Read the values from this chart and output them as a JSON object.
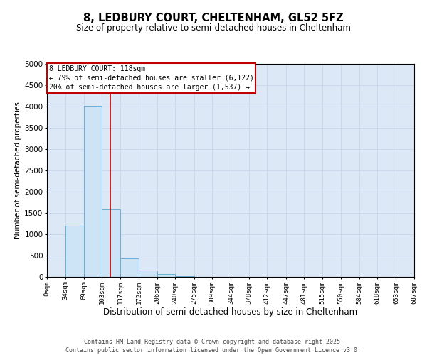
{
  "title_line1": "8, LEDBURY COURT, CHELTENHAM, GL52 5FZ",
  "title_line2": "Size of property relative to semi-detached houses in Cheltenham",
  "xlabel": "Distribution of semi-detached houses by size in Cheltenham",
  "ylabel": "Number of semi-detached properties",
  "bar_color": "#cce4f5",
  "bar_edge_color": "#6aaed6",
  "vline_color": "#c00000",
  "vline_x": 118,
  "annotation_text": "8 LEDBURY COURT: 118sqm\n← 79% of semi-detached houses are smaller (6,122)\n20% of semi-detached houses are larger (1,537) →",
  "annotation_box_color": "#c00000",
  "footer_line1": "Contains HM Land Registry data © Crown copyright and database right 2025.",
  "footer_line2": "Contains public sector information licensed under the Open Government Licence v3.0.",
  "ylim": [
    0,
    5000
  ],
  "yticks": [
    0,
    500,
    1000,
    1500,
    2000,
    2500,
    3000,
    3500,
    4000,
    4500,
    5000
  ],
  "bin_edges": [
    0,
    34,
    69,
    103,
    137,
    172,
    206,
    240,
    275,
    309,
    344,
    378,
    412,
    447,
    481,
    515,
    550,
    584,
    618,
    653,
    687
  ],
  "bin_counts": [
    0,
    1200,
    4020,
    1580,
    430,
    150,
    60,
    20,
    8,
    3,
    2,
    1,
    1,
    0,
    0,
    0,
    0,
    0,
    0,
    0
  ],
  "grid_color": "#c8d4e8",
  "background_color": "#dce8f5"
}
